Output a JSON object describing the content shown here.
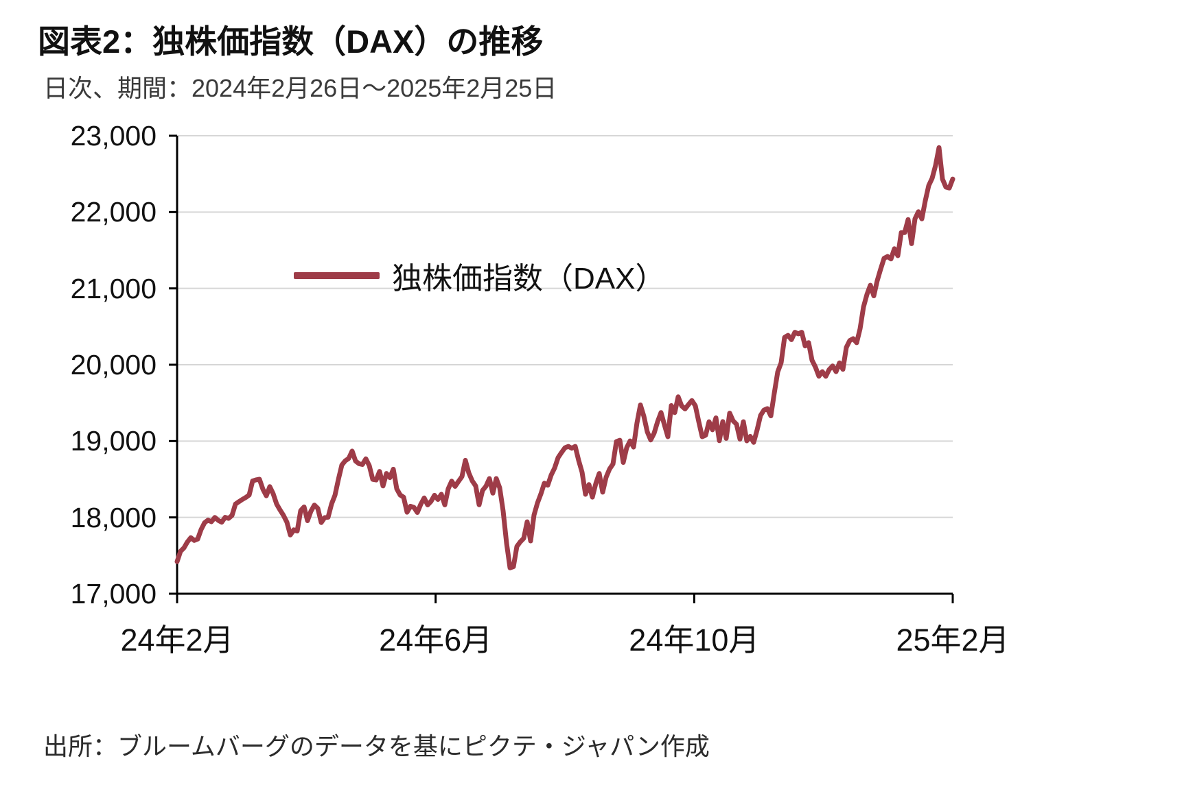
{
  "header": {
    "title": "図表2：独株価指数（DAX）の推移",
    "subtitle": "日次、期間：2024年2月26日～2025年2月25日"
  },
  "legend": {
    "label": "独株価指数（DAX）"
  },
  "footer": {
    "source": "出所：ブルームバーグのデータを基にピクテ・ジャパン作成"
  },
  "colors": {
    "line": "#9E3C48",
    "grid": "#D6D6D6",
    "axis": "#000000"
  },
  "chart_data": {
    "type": "line",
    "title": "図表2：独株価指数（DAX）の推移",
    "subtitle": "日次、期間：2024年2月26日～2025年2月25日",
    "xlabel": "",
    "ylabel": "",
    "ylim": [
      17000,
      23000
    ],
    "yticks": [
      17000,
      18000,
      19000,
      20000,
      21000,
      22000,
      23000
    ],
    "xticks": [
      {
        "label": "24年2月",
        "frac": 0
      },
      {
        "label": "24年6月",
        "frac": 0.3333
      },
      {
        "label": "24年10月",
        "frac": 0.6667
      },
      {
        "label": "25年2月",
        "frac": 1
      }
    ],
    "grid": "horizontal",
    "legend_position": "inside-upper-left",
    "series": [
      {
        "name": "独株価指数（DAX）",
        "values": [
          17420,
          17556,
          17601,
          17678,
          17735,
          17698,
          17716,
          17842,
          17930,
          17965,
          17943,
          18000,
          17961,
          17937,
          18001,
          17987,
          18026,
          18174,
          18205,
          18235,
          18261,
          18293,
          18477,
          18492,
          18500,
          18370,
          18283,
          18403,
          18310,
          18175,
          18097,
          18026,
          17937,
          17770,
          17837,
          17821,
          18088,
          18137,
          17957,
          18081,
          18161,
          18118,
          17932,
          17997,
          18002,
          18175,
          18290,
          18498,
          18686,
          18742,
          18772,
          18869,
          18738,
          18704,
          18693,
          18768,
          18678,
          18498,
          18490,
          18602,
          18412,
          18575,
          18521,
          18631,
          18374,
          18293,
          18265,
          18068,
          18146,
          18131,
          18064,
          18172,
          18255,
          18163,
          18211,
          18290,
          18235,
          18303,
          18164,
          18375,
          18475,
          18407,
          18472,
          18535,
          18748,
          18582,
          18478,
          18412,
          18165,
          18354,
          18408,
          18509,
          18318,
          18509,
          18387,
          18083,
          17661,
          17339,
          17354,
          17619,
          17680,
          17726,
          17942,
          17692,
          18031,
          18188,
          18308,
          18448,
          18422,
          18555,
          18647,
          18782,
          18849,
          18912,
          18930,
          18906,
          18930,
          18747,
          18592,
          18302,
          18430,
          18266,
          18443,
          18575,
          18330,
          18526,
          18633,
          18699,
          18993,
          19011,
          18720,
          18913,
          19002,
          18921,
          19238,
          19473,
          19325,
          19121,
          19015,
          19104,
          19254,
          19374,
          19211,
          19057,
          19466,
          19373,
          19580,
          19461,
          19421,
          19478,
          19531,
          19463,
          19254,
          19057,
          19077,
          19254,
          19148,
          19304,
          19005,
          19255,
          19035,
          19366,
          19265,
          19220,
          19025,
          19254,
          19003,
          19061,
          18983,
          19146,
          19335,
          19406,
          19425,
          19330,
          19626,
          19906,
          20026,
          20358,
          20385,
          20329,
          20426,
          20405,
          20426,
          20246,
          20290,
          20058,
          19969,
          19849,
          19909,
          19848,
          19937,
          19984,
          19909,
          20024,
          19940,
          20227,
          20317,
          20341,
          20288,
          20471,
          20757,
          20921,
          21042,
          20903,
          21101,
          21254,
          21395,
          21418,
          21386,
          21520,
          21428,
          21730,
          21732,
          21902,
          21586,
          21912,
          22005,
          21911,
          22148,
          22348,
          22443,
          22612,
          22845,
          22433,
          22327,
          22315,
          22433
        ]
      }
    ]
  }
}
